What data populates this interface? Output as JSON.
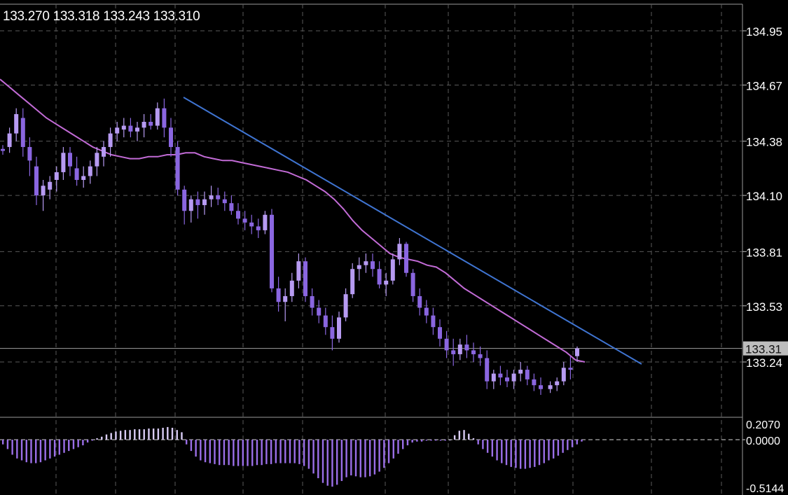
{
  "header": {
    "open": "133.270",
    "high": "133.318",
    "low": "133.243",
    "close": "133.310"
  },
  "colors": {
    "background": "#000000",
    "candle": "#b79bf2",
    "candle_dark": "#8a66e0",
    "ma_line": "#c26bd6",
    "trend_line": "#3f74d1",
    "grid": "#5a5a5a",
    "osc_positive": "#d9ccf5",
    "osc_negative": "#9b6fe8"
  },
  "chart_data": [
    {
      "type": "candlestick",
      "y_ticks": [
        "134.95",
        "134.67",
        "134.38",
        "134.10",
        "133.81",
        "133.53",
        "133.24"
      ],
      "current_price_label": "133.31",
      "ylim": [
        133.07,
        135.03
      ],
      "grid": true,
      "candles": [
        [
          134.34,
          134.36,
          134.31,
          134.33
        ],
        [
          134.35,
          134.45,
          134.32,
          134.42
        ],
        [
          134.42,
          134.55,
          134.38,
          134.52
        ],
        [
          134.5,
          134.55,
          134.3,
          134.35
        ],
        [
          134.35,
          134.4,
          134.2,
          134.28
        ],
        [
          134.25,
          134.3,
          134.05,
          134.1
        ],
        [
          134.1,
          134.18,
          134.02,
          134.15
        ],
        [
          134.13,
          134.2,
          134.08,
          134.17
        ],
        [
          134.18,
          134.25,
          134.12,
          134.22
        ],
        [
          134.22,
          134.35,
          134.18,
          134.32
        ],
        [
          134.32,
          134.35,
          134.2,
          134.25
        ],
        [
          134.24,
          134.3,
          134.15,
          134.18
        ],
        [
          134.18,
          134.25,
          134.14,
          134.2
        ],
        [
          134.2,
          134.28,
          134.16,
          134.25
        ],
        [
          134.25,
          134.35,
          134.2,
          134.32
        ],
        [
          134.3,
          134.38,
          134.25,
          134.35
        ],
        [
          134.35,
          134.45,
          134.3,
          134.42
        ],
        [
          134.42,
          134.48,
          134.38,
          134.45
        ],
        [
          134.44,
          134.5,
          134.4,
          134.46
        ],
        [
          134.46,
          134.5,
          134.4,
          134.43
        ],
        [
          134.43,
          134.48,
          134.38,
          134.45
        ],
        [
          134.45,
          134.52,
          134.4,
          134.48
        ],
        [
          134.48,
          134.52,
          134.44,
          134.46
        ],
        [
          134.46,
          134.58,
          134.44,
          134.55
        ],
        [
          134.55,
          134.6,
          134.4,
          134.45
        ],
        [
          134.45,
          134.5,
          134.3,
          134.35
        ],
        [
          134.35,
          134.38,
          134.1,
          134.13
        ],
        [
          134.13,
          134.15,
          133.95,
          134.02
        ],
        [
          134.02,
          134.1,
          133.96,
          134.08
        ],
        [
          134.08,
          134.12,
          133.98,
          134.05
        ],
        [
          134.05,
          134.12,
          134.0,
          134.08
        ],
        [
          134.08,
          134.15,
          134.04,
          134.1
        ],
        [
          134.1,
          134.14,
          134.05,
          134.08
        ],
        [
          134.08,
          134.12,
          134.02,
          134.06
        ],
        [
          134.06,
          134.1,
          134.0,
          134.02
        ],
        [
          134.02,
          134.06,
          133.95,
          133.98
        ],
        [
          133.98,
          134.02,
          133.92,
          133.96
        ],
        [
          133.96,
          134.0,
          133.9,
          133.94
        ],
        [
          133.94,
          133.98,
          133.88,
          133.92
        ],
        [
          133.92,
          134.02,
          133.9,
          134.0
        ],
        [
          134.0,
          134.03,
          133.6,
          133.62
        ],
        [
          133.62,
          133.68,
          133.5,
          133.55
        ],
        [
          133.55,
          133.62,
          133.45,
          133.58
        ],
        [
          133.58,
          133.7,
          133.55,
          133.66
        ],
        [
          133.66,
          133.8,
          133.62,
          133.76
        ],
        [
          133.76,
          133.78,
          133.55,
          133.58
        ],
        [
          133.58,
          133.62,
          133.48,
          133.52
        ],
        [
          133.52,
          133.56,
          133.44,
          133.48
        ],
        [
          133.48,
          133.52,
          133.38,
          133.42
        ],
        [
          133.42,
          133.48,
          133.3,
          133.36
        ],
        [
          133.36,
          133.5,
          133.34,
          133.47
        ],
        [
          133.47,
          133.62,
          133.45,
          133.59
        ],
        [
          133.59,
          133.75,
          133.57,
          133.72
        ],
        [
          133.72,
          133.78,
          133.66,
          133.74
        ],
        [
          133.74,
          133.8,
          133.7,
          133.76
        ],
        [
          133.76,
          133.8,
          133.68,
          133.72
        ],
        [
          133.72,
          133.76,
          133.62,
          133.64
        ],
        [
          133.64,
          133.7,
          133.58,
          133.66
        ],
        [
          133.66,
          133.8,
          133.64,
          133.77
        ],
        [
          133.77,
          133.88,
          133.74,
          133.85
        ],
        [
          133.85,
          133.86,
          133.68,
          133.7
        ],
        [
          133.7,
          133.72,
          133.55,
          133.58
        ],
        [
          133.58,
          133.62,
          133.48,
          133.52
        ],
        [
          133.52,
          133.56,
          133.44,
          133.48
        ],
        [
          133.48,
          133.52,
          133.38,
          133.42
        ],
        [
          133.42,
          133.46,
          133.32,
          133.36
        ],
        [
          133.36,
          133.4,
          133.26,
          133.3
        ],
        [
          133.3,
          133.36,
          133.22,
          133.28
        ],
        [
          133.28,
          133.36,
          133.25,
          133.33
        ],
        [
          133.33,
          133.38,
          133.26,
          133.3
        ],
        [
          133.3,
          133.34,
          133.24,
          133.28
        ],
        [
          133.28,
          133.32,
          133.22,
          133.26
        ],
        [
          133.26,
          133.3,
          133.1,
          133.14
        ],
        [
          133.14,
          133.2,
          133.1,
          133.18
        ],
        [
          133.18,
          133.22,
          133.12,
          133.16
        ],
        [
          133.16,
          133.2,
          133.11,
          133.14
        ],
        [
          133.14,
          133.2,
          133.1,
          133.18
        ],
        [
          133.18,
          133.24,
          133.14,
          133.2
        ],
        [
          133.2,
          133.22,
          133.12,
          133.15
        ],
        [
          133.15,
          133.18,
          133.09,
          133.12
        ],
        [
          133.12,
          133.16,
          133.07,
          133.1
        ],
        [
          133.1,
          133.14,
          133.08,
          133.12
        ],
        [
          133.12,
          133.16,
          133.09,
          133.14
        ],
        [
          133.14,
          133.24,
          133.12,
          133.21
        ],
        [
          133.21,
          133.27,
          133.15,
          133.2
        ],
        [
          133.27,
          133.32,
          133.24,
          133.31
        ]
      ],
      "moving_average": [
        134.7,
        134.66,
        134.62,
        134.58,
        134.54,
        134.5,
        134.47,
        134.44,
        134.41,
        134.38,
        134.35,
        134.33,
        134.31,
        134.3,
        134.29,
        134.29,
        134.3,
        134.3,
        134.31,
        134.31,
        134.32,
        134.32,
        134.3,
        134.29,
        134.28,
        134.28,
        134.27,
        134.26,
        134.25,
        134.24,
        134.23,
        134.22,
        134.2,
        134.18,
        134.15,
        134.12,
        134.08,
        134.03,
        133.97,
        133.92,
        133.88,
        133.84,
        133.8,
        133.78,
        133.77,
        133.76,
        133.74,
        133.73,
        133.7,
        133.66,
        133.62,
        133.59,
        133.56,
        133.53,
        133.5,
        133.47,
        133.44,
        133.41,
        133.38,
        133.35,
        133.32,
        133.29,
        133.25,
        133.24
      ],
      "trend_line": [
        [
          134.64,
          26
        ],
        [
          133.24,
          86
        ]
      ]
    },
    {
      "type": "bar",
      "name": "oscillator",
      "y_ticks": [
        "0.2070",
        "0.0000",
        "-0.5144"
      ],
      "ylim": [
        -0.5144,
        0.207
      ],
      "values": [
        -0.05,
        -0.1,
        -0.16,
        -0.2,
        -0.22,
        -0.24,
        -0.25,
        -0.25,
        -0.24,
        -0.22,
        -0.2,
        -0.18,
        -0.16,
        -0.14,
        -0.12,
        -0.1,
        -0.08,
        -0.06,
        -0.03,
        -0.01,
        0.02,
        0.04,
        0.07,
        0.09,
        0.11,
        0.12,
        0.13,
        0.13,
        0.14,
        0.14,
        0.14,
        0.15,
        0.15,
        0.15,
        0.16,
        0.17,
        0.16,
        0.13,
        0.1,
        -0.05,
        -0.12,
        -0.18,
        -0.22,
        -0.24,
        -0.25,
        -0.26,
        -0.27,
        -0.27,
        -0.27,
        -0.28,
        -0.28,
        -0.28,
        -0.28,
        -0.28,
        -0.27,
        -0.27,
        -0.26,
        -0.26,
        -0.25,
        -0.25,
        -0.25,
        -0.25,
        -0.25,
        -0.26,
        -0.28,
        -0.31,
        -0.36,
        -0.41,
        -0.46,
        -0.49,
        -0.5,
        -0.48,
        -0.44,
        -0.4,
        -0.38,
        -0.39,
        -0.4,
        -0.4,
        -0.39,
        -0.37,
        -0.34,
        -0.3,
        -0.25,
        -0.2,
        -0.15,
        -0.1,
        -0.06,
        -0.03,
        -0.02,
        -0.02,
        -0.01,
        -0.01,
        -0.01,
        -0.01,
        -0.01,
        0.0,
        0.06,
        0.12,
        0.13,
        0.08,
        0.02,
        -0.05,
        -0.1,
        -0.14,
        -0.18,
        -0.22,
        -0.25,
        -0.27,
        -0.29,
        -0.3,
        -0.31,
        -0.31,
        -0.3,
        -0.29,
        -0.27,
        -0.25,
        -0.22,
        -0.2,
        -0.17,
        -0.14,
        -0.11,
        -0.08,
        -0.05,
        -0.02
      ]
    }
  ]
}
